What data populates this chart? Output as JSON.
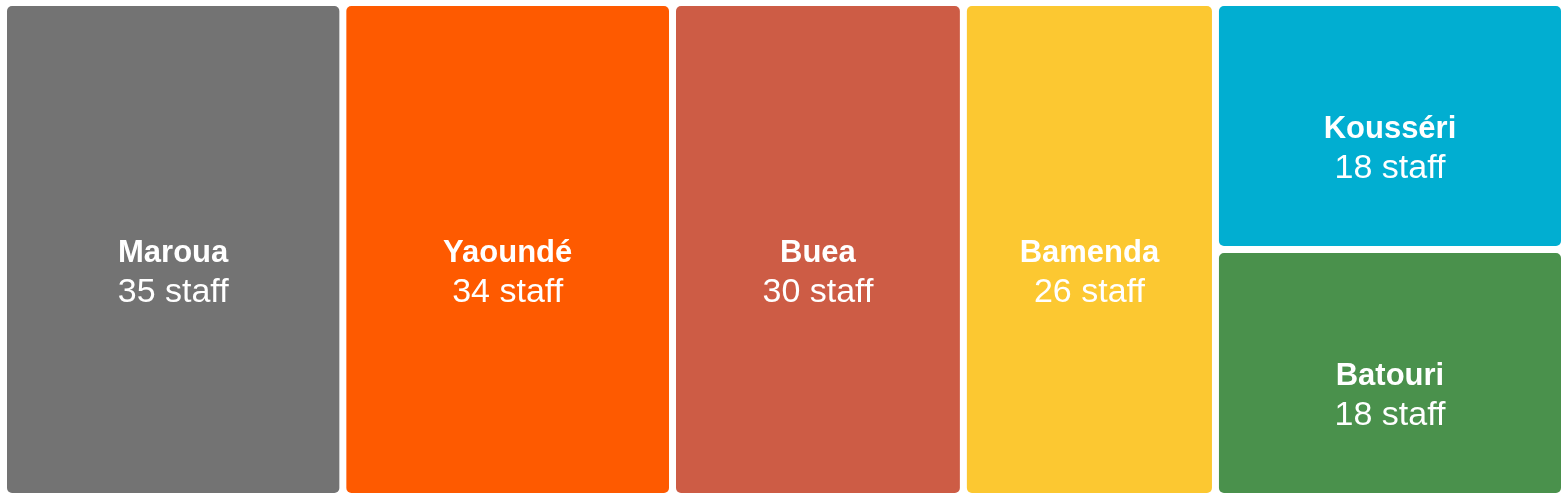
{
  "chart_data": {
    "type": "other",
    "categories": [
      "Maroua",
      "Yaoundé",
      "Buea",
      "Bamenda",
      "Kousséri",
      "Batouri"
    ],
    "values": [
      35,
      34,
      30,
      26,
      18,
      18
    ],
    "colors": [
      "#737373",
      "#fe5a00",
      "#cd5c45",
      "#fcc831",
      "#01aed1",
      "#4a914c"
    ],
    "value_labels": [
      "35 staff",
      "34 staff",
      "30 staff",
      "26 staff",
      "18 staff",
      "18 staff"
    ]
  }
}
